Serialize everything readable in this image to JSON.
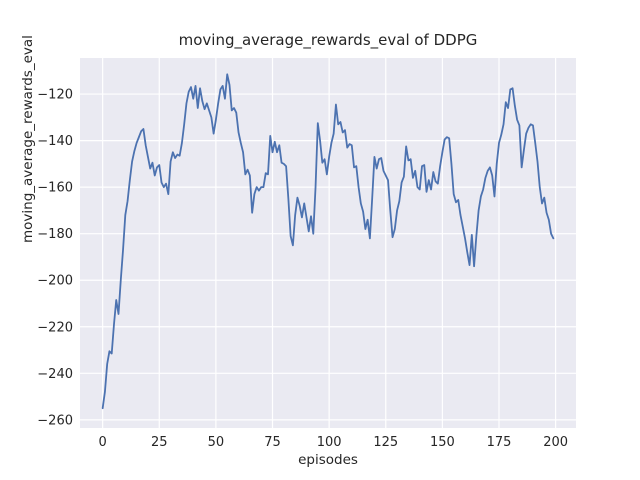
{
  "chart_data": {
    "type": "line",
    "title": "moving_average_rewards_eval of DDPG",
    "xlabel": "episodes",
    "ylabel": "moving_average_rewards_eval",
    "grid": true,
    "legend_position": "none",
    "xlim": [
      -10,
      209
    ],
    "ylim": [
      -263.5,
      -104.5
    ],
    "x_ticks": {
      "values": [
        0,
        25,
        50,
        75,
        100,
        125,
        150,
        175,
        200
      ],
      "labels": [
        "0",
        "25",
        "50",
        "75",
        "100",
        "125",
        "150",
        "175",
        "200"
      ]
    },
    "y_ticks": {
      "values": [
        -260,
        -240,
        -220,
        -200,
        -180,
        -160,
        -140,
        -120
      ],
      "labels": [
        "−260",
        "−240",
        "−220",
        "−200",
        "−180",
        "−160",
        "−140",
        "−120"
      ]
    },
    "colors": {
      "line": "#4C72B0",
      "plot_background": "#EAEAF2",
      "grid": "#FFFFFF",
      "figure_background": "#FFFFFF",
      "text": "#262626"
    },
    "series": [
      {
        "name": "moving_average_rewards_eval",
        "x_start": 0,
        "x_step": 1,
        "values": [
          -255,
          -248,
          -236,
          -230.5,
          -231.5,
          -219,
          -208.5,
          -214.5,
          -200,
          -187,
          -172,
          -166,
          -157,
          -149,
          -144.5,
          -141,
          -138.5,
          -136,
          -135,
          -142,
          -147,
          -152,
          -149.5,
          -155,
          -151.5,
          -150.5,
          -158,
          -160,
          -158.5,
          -163,
          -149,
          -145,
          -147.5,
          -146,
          -146.5,
          -141,
          -133,
          -124,
          -119,
          -117,
          -122,
          -116.5,
          -126,
          -117.5,
          -123,
          -126.5,
          -124,
          -127,
          -130,
          -137,
          -131,
          -124,
          -118,
          -116.5,
          -122,
          -111.5,
          -116,
          -127,
          -126,
          -128,
          -136.5,
          -141,
          -145,
          -154.5,
          -152.5,
          -155,
          -171,
          -163,
          -160,
          -161.5,
          -160,
          -160,
          -154,
          -154.5,
          -138,
          -145,
          -140.5,
          -145,
          -142,
          -149.5,
          -150,
          -151,
          -165,
          -181,
          -185,
          -172,
          -164.5,
          -168,
          -173,
          -167,
          -173,
          -179,
          -172.5,
          -180,
          -160,
          -132.5,
          -140,
          -149.5,
          -148,
          -154.5,
          -147,
          -141,
          -137,
          -124.5,
          -133,
          -132,
          -136.5,
          -135.5,
          -143,
          -141.5,
          -142,
          -151.5,
          -151,
          -160,
          -167,
          -170.5,
          -178,
          -174,
          -182,
          -165,
          -147,
          -152,
          -148,
          -147.5,
          -153,
          -155,
          -157,
          -170,
          -181.5,
          -178,
          -170,
          -166,
          -158,
          -155.5,
          -142.5,
          -148.5,
          -148,
          -156,
          -153,
          -160,
          -161,
          -151,
          -150.5,
          -162,
          -157,
          -161,
          -153.5,
          -157.5,
          -158.5,
          -151,
          -145,
          -139.5,
          -138.5,
          -139,
          -150,
          -163,
          -166.5,
          -165.5,
          -172,
          -177,
          -182,
          -188,
          -193.5,
          -180.5,
          -194,
          -181,
          -170,
          -164,
          -161,
          -156,
          -153,
          -151.5,
          -155,
          -164,
          -150,
          -141,
          -137.5,
          -133,
          -123.5,
          -126,
          -118,
          -117.5,
          -125,
          -131,
          -133.5,
          -151.5,
          -144,
          -137,
          -134.5,
          -133,
          -133.5,
          -141,
          -149,
          -160,
          -167,
          -164.5,
          -171,
          -174,
          -180,
          -182
        ]
      }
    ]
  }
}
